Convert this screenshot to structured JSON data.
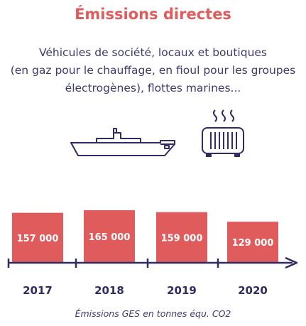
{
  "header": {
    "title": "Émissions directes",
    "description": [
      "Véhicules de société, locaux et boutiques",
      "(en gaz pour le chauffage, en fioul pour les groupes",
      "électrogènes), flottes marines..."
    ],
    "icons": [
      "ship-icon",
      "radiator-heater-icon"
    ]
  },
  "colors": {
    "accent": "#e05c5c",
    "navy": "#2f2c63",
    "bar_text": "#ffffff"
  },
  "chart_data": {
    "type": "bar",
    "categories": [
      "2017",
      "2018",
      "2019",
      "2020"
    ],
    "values": [
      157000,
      165000,
      159000,
      129000
    ],
    "value_labels": [
      "157 000",
      "165 000",
      "159 000",
      "129 000"
    ],
    "caption": "Émissions GES en tonnes équ. CO2",
    "axis": "timeline-arrow",
    "grid": false
  }
}
